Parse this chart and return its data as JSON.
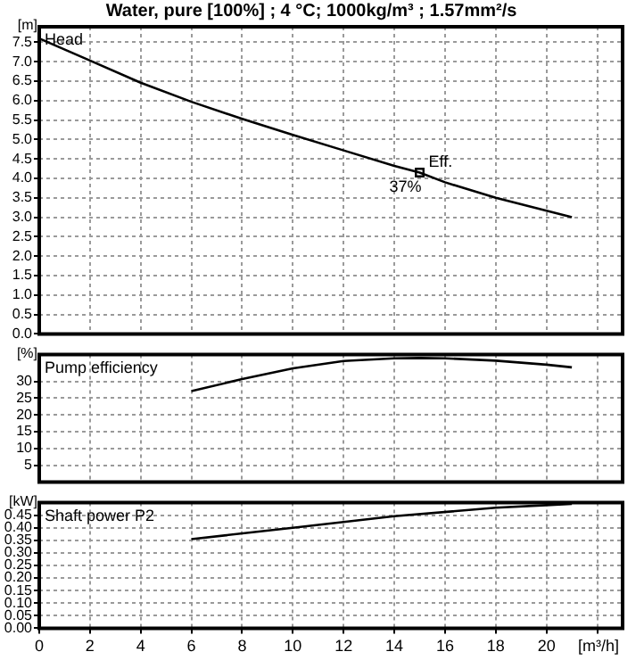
{
  "chart_data": [
    {
      "type": "line",
      "title": "Water, pure [100%] ; 4 °C; 1000kg/m³ ; 1.57mm²/s",
      "ylabel": "[m]",
      "annotations": [
        "Head",
        {
          "text": "Eff.",
          "x": 15,
          "y": 4.15
        },
        {
          "text": "37%",
          "x": 15,
          "y": 4.15
        }
      ],
      "series": [
        {
          "type": "line",
          "color": "#000000",
          "x": [
            0,
            2,
            4,
            6,
            8,
            10,
            12,
            14,
            15,
            16,
            18,
            21
          ],
          "values": [
            7.6,
            7.03,
            6.46,
            5.97,
            5.53,
            5.12,
            4.72,
            4.32,
            4.15,
            3.9,
            3.5,
            3.0
          ]
        },
        {
          "type": "scatter",
          "marker": "square",
          "color": "#000000",
          "x": [
            15
          ],
          "values": [
            4.15
          ]
        }
      ],
      "xlim": [
        0,
        23
      ],
      "xticks": [
        0,
        2,
        4,
        6,
        8,
        10,
        12,
        14,
        16,
        18,
        20,
        22
      ],
      "ylim": [
        0,
        7.9
      ],
      "yticks": [
        {
          "value": 0,
          "label": "0.0"
        },
        0.5,
        {
          "value": 1,
          "label": "1.0"
        },
        1.5,
        {
          "value": 2,
          "label": "2.0"
        },
        2.5,
        {
          "value": 3,
          "label": "3.0"
        },
        3.5,
        {
          "value": 4,
          "label": "4.0"
        },
        4.5,
        {
          "value": 5,
          "label": "5.0"
        },
        5.5,
        {
          "value": 6,
          "label": "6.0"
        },
        6.5,
        {
          "value": 7,
          "label": "7.0"
        },
        7.5
      ],
      "grid": true,
      "legend": false,
      "tick_labels": "y"
    },
    {
      "type": "line",
      "ylabel": "[%]",
      "annotations": [
        "Pump efficiency"
      ],
      "series": [
        {
          "type": "line",
          "color": "#000000",
          "x": [
            6,
            8,
            10,
            12,
            14,
            15,
            16,
            18,
            20,
            21
          ],
          "values": [
            27.1,
            30.7,
            33.9,
            36.1,
            36.9,
            37,
            36.9,
            36.2,
            35.0,
            34.2
          ]
        }
      ],
      "xlim": [
        0,
        23
      ],
      "xticks": [
        0,
        2,
        4,
        6,
        8,
        10,
        12,
        14,
        16,
        18,
        20,
        22
      ],
      "ylim": [
        0,
        38
      ],
      "yticks": [
        5,
        10,
        15,
        20,
        25,
        30
      ],
      "grid": true,
      "legend": false,
      "tick_labels": "y"
    },
    {
      "type": "line",
      "ylabel": "[kW]",
      "xlabel": "[m³/h]",
      "annotations": [
        "Shaft power P2"
      ],
      "series": [
        {
          "type": "line",
          "color": "#000000",
          "x": [
            6,
            10,
            14,
            18,
            20,
            21
          ],
          "values": [
            0.355,
            0.4,
            0.446,
            0.48,
            0.49,
            0.495
          ]
        }
      ],
      "xlim": [
        0,
        23
      ],
      "xticks": [
        0,
        2,
        4,
        6,
        8,
        10,
        12,
        14,
        16,
        18,
        20,
        {
          "value": 22,
          "label": null
        }
      ],
      "ylim": [
        0,
        0.5
      ],
      "yticks": [
        {
          "value": 0,
          "label": "0.00"
        },
        0.05,
        {
          "value": 0.1,
          "label": "0.10"
        },
        0.15,
        {
          "value": 0.2,
          "label": "0.20"
        },
        0.25,
        {
          "value": 0.3,
          "label": "0.30"
        },
        0.35,
        {
          "value": 0.4,
          "label": "0.40"
        },
        0.45
      ],
      "grid": true,
      "legend": false
    }
  ]
}
